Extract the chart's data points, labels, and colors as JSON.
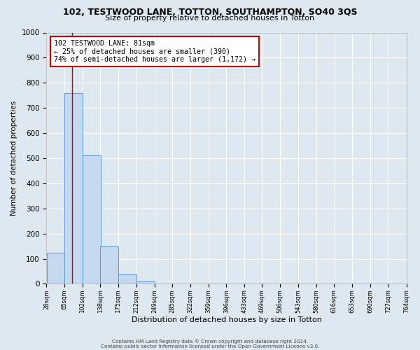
{
  "title": "102, TESTWOOD LANE, TOTTON, SOUTHAMPTON, SO40 3QS",
  "subtitle": "Size of property relative to detached houses in Totton",
  "xlabel": "Distribution of detached houses by size in Totton",
  "ylabel": "Number of detached properties",
  "bar_color": "#c5d8f0",
  "bar_edge_color": "#5b9bd5",
  "background_color": "#dde8f0",
  "grid_color": "#ffffff",
  "vline_x": 81,
  "vline_color": "#cc0000",
  "bin_edges": [
    28,
    65,
    102,
    138,
    175,
    212,
    249,
    285,
    322,
    359,
    396,
    433,
    469,
    506,
    543,
    580,
    616,
    653,
    690,
    727,
    764
  ],
  "bin_labels": [
    "28sqm",
    "65sqm",
    "102sqm",
    "138sqm",
    "175sqm",
    "212sqm",
    "249sqm",
    "285sqm",
    "322sqm",
    "359sqm",
    "396sqm",
    "433sqm",
    "469sqm",
    "506sqm",
    "543sqm",
    "580sqm",
    "616sqm",
    "653sqm",
    "690sqm",
    "727sqm",
    "764sqm"
  ],
  "bar_heights": [
    125,
    760,
    510,
    150,
    38,
    10,
    0,
    0,
    0,
    0,
    0,
    0,
    0,
    0,
    0,
    0,
    0,
    0,
    0,
    0
  ],
  "ylim": [
    0,
    1000
  ],
  "yticks": [
    0,
    100,
    200,
    300,
    400,
    500,
    600,
    700,
    800,
    900,
    1000
  ],
  "annotation_title": "102 TESTWOOD LANE: 81sqm",
  "annotation_line1": "← 25% of detached houses are smaller (390)",
  "annotation_line2": "74% of semi-detached houses are larger (1,172) →",
  "annotation_box_facecolor": "#ffffff",
  "annotation_box_edge": "#cc0000",
  "footer_line1": "Contains HM Land Registry data © Crown copyright and database right 2024.",
  "footer_line2": "Contains public sector information licensed under the Open Government Licence v3.0."
}
